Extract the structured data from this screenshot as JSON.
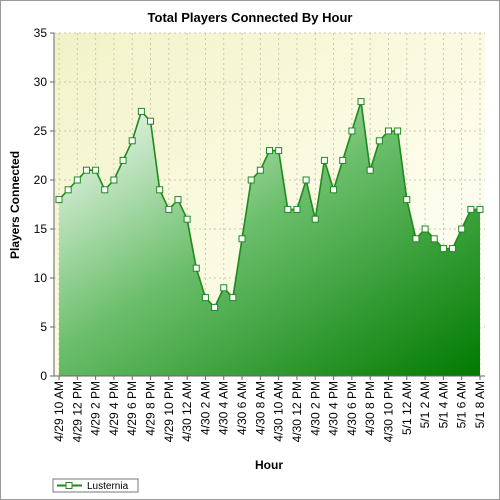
{
  "chart_data": {
    "type": "area",
    "title": "Total Players Connected By Hour",
    "xlabel": "Hour",
    "ylabel": "Players Connected",
    "ylim": [
      0,
      35
    ],
    "y_ticks": [
      0,
      5,
      10,
      15,
      20,
      25,
      30,
      35
    ],
    "grid": true,
    "legend": "bottom-left",
    "x_tick_labels": [
      "4/29 10 AM",
      "4/29 12 PM",
      "4/29 2 PM",
      "4/29 4 PM",
      "4/29 6 PM",
      "4/29 8 PM",
      "4/29 10 PM",
      "4/30 12 AM",
      "4/30 2 AM",
      "4/30 4 AM",
      "4/30 6 AM",
      "4/30 8 AM",
      "4/30 10 AM",
      "4/30 12 PM",
      "4/30 2 PM",
      "4/30 4 PM",
      "4/30 6 PM",
      "4/30 8 PM",
      "4/30 10 PM",
      "5/1 12 AM",
      "5/1 2 AM",
      "5/1 4 AM",
      "5/1 6 AM",
      "5/1 8 AM"
    ],
    "series": [
      {
        "name": "Lusternia",
        "color": "#1e8a1e",
        "values": [
          18,
          19,
          20,
          21,
          21,
          19,
          20,
          22,
          24,
          27,
          26,
          19,
          17,
          18,
          16,
          11,
          8,
          7,
          9,
          8,
          14,
          20,
          21,
          23,
          23,
          17,
          17,
          20,
          16,
          22,
          19,
          22,
          25,
          28,
          21,
          24,
          25,
          25,
          18,
          14,
          15,
          14,
          13,
          13,
          15,
          17,
          17
        ]
      }
    ]
  }
}
